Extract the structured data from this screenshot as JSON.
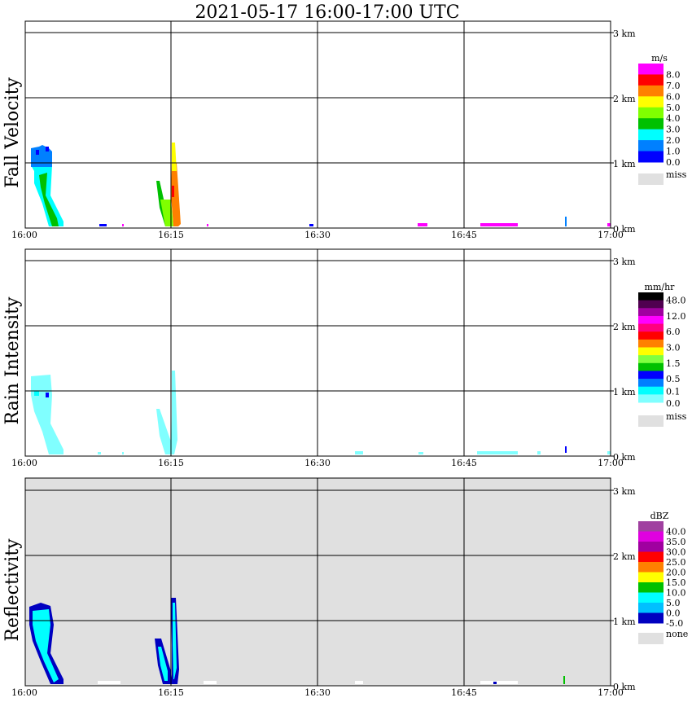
{
  "chart_data": [
    {
      "type": "heatmap",
      "title": "2021-05-17   16:00-17:00 UTC",
      "ylabel": "Fall Velocity",
      "x_ticks": [
        "16:00",
        "16:15",
        "16:30",
        "16:45",
        "17:00"
      ],
      "y_ticks": [
        "0 km",
        "1 km",
        "2 km",
        "3 km"
      ],
      "ylim_km": [
        0,
        3.2
      ],
      "legend": {
        "unit": "m/s",
        "colors": [
          "#ff00ff",
          "#ff0000",
          "#ff8000",
          "#ffff00",
          "#80ff00",
          "#00c000",
          "#00ffff",
          "#0080ff",
          "#0000ff"
        ],
        "labels": [
          "8.0",
          "7.0",
          "6.0",
          "5.0",
          "4.0",
          "3.0",
          "2.0",
          "1.0",
          "0.0"
        ],
        "missing_label": "miss",
        "missing_color": "#e0e0e0"
      }
    },
    {
      "type": "heatmap",
      "ylabel": "Rain Intensity",
      "x_ticks": [
        "16:00",
        "16:15",
        "16:30",
        "16:45",
        "17:00"
      ],
      "y_ticks": [
        "0 km",
        "1 km",
        "2 km",
        "3 km"
      ],
      "legend": {
        "unit": "mm/hr",
        "colors": [
          "#000000",
          "#500050",
          "#a000a0",
          "#ff00ff",
          "#ff0080",
          "#ff0000",
          "#ff8000",
          "#ffff00",
          "#80ff40",
          "#00c000",
          "#0000ff",
          "#0080ff",
          "#00ffff",
          "#80ffff"
        ],
        "labels": [
          "48.0",
          "12.0",
          "6.0",
          "3.0",
          "1.5",
          "0.5",
          "0.1",
          "0.0"
        ],
        "missing_label": "miss",
        "missing_color": "#e0e0e0"
      }
    },
    {
      "type": "heatmap",
      "ylabel": "Reflectivity",
      "x_ticks": [
        "16:00",
        "16:15",
        "16:30",
        "16:45",
        "17:00"
      ],
      "y_ticks": [
        "0 km",
        "1 km",
        "2 km",
        "3 km"
      ],
      "legend": {
        "unit": "dBZ",
        "colors": [
          "#a040a0",
          "#e000e0",
          "#a000a0",
          "#ff0000",
          "#ff8000",
          "#ffff00",
          "#00c000",
          "#00ffff",
          "#00c0ff",
          "#0000c0"
        ],
        "labels": [
          "40.0",
          "35.0",
          "30.0",
          "25.0",
          "20.0",
          "15.0",
          "10.0",
          "5.0",
          "0.0",
          "-5.0"
        ],
        "missing_label": "none",
        "missing_color": "#e0e0e0"
      }
    }
  ]
}
